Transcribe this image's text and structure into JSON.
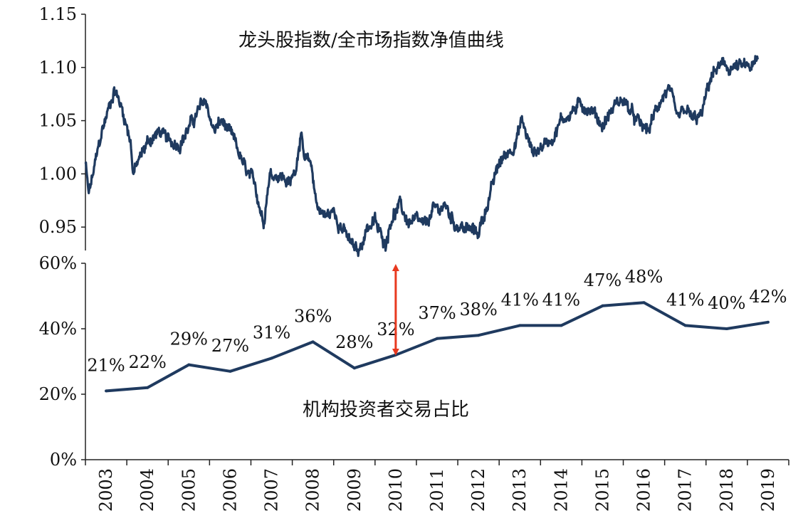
{
  "chart_data": [
    {
      "type": "line",
      "title": "龙头股指数/全市场指数净值曲线",
      "ylim": [
        0.92,
        1.15
      ],
      "yticks": [
        "1.15",
        "1.10",
        "1.05",
        "1.00",
        "0.95"
      ],
      "ytick_values": [
        1.15,
        1.1,
        1.05,
        1.0,
        0.95
      ],
      "grid": false,
      "x_range": [
        2003,
        2020
      ],
      "keypoints": {
        "x": [
          2003.0,
          2003.08,
          2003.4,
          2003.7,
          2003.9,
          2004.1,
          2004.15,
          2004.5,
          2004.8,
          2005.0,
          2005.3,
          2005.6,
          2005.9,
          2006.1,
          2006.3,
          2006.6,
          2006.9,
          2007.1,
          2007.3,
          2007.45,
          2007.7,
          2007.95,
          2008.1,
          2008.2,
          2008.3,
          2008.45,
          2008.6,
          2008.8,
          2009.0,
          2009.2,
          2009.4,
          2009.6,
          2009.8,
          2010.0,
          2010.1,
          2010.25,
          2010.4,
          2010.6,
          2010.8,
          2011.0,
          2011.2,
          2011.4,
          2011.7,
          2011.9,
          2012.2,
          2012.5,
          2012.7,
          2013.0,
          2013.2,
          2013.4,
          2013.55,
          2013.8,
          2014.0,
          2014.3,
          2014.5,
          2014.8,
          2015.0,
          2015.25,
          2015.5,
          2015.8,
          2016.0,
          2016.3,
          2016.6,
          2016.9,
          2017.1,
          2017.3,
          2017.5,
          2017.7,
          2017.9,
          2018.1,
          2018.3,
          2018.5,
          2018.7,
          2018.9,
          2019.1,
          2019.25
        ],
        "y": [
          1.01,
          0.98,
          1.04,
          1.08,
          1.06,
          1.03,
          1.0,
          1.03,
          1.04,
          1.03,
          1.03,
          1.05,
          1.07,
          1.04,
          1.05,
          1.03,
          1.0,
          0.99,
          0.955,
          1.0,
          1.0,
          0.99,
          1.01,
          1.04,
          1.01,
          1.01,
          0.97,
          0.96,
          0.965,
          0.95,
          0.935,
          0.925,
          0.95,
          0.955,
          0.945,
          0.935,
          0.96,
          0.97,
          0.955,
          0.955,
          0.95,
          0.965,
          0.97,
          0.955,
          0.948,
          0.945,
          0.97,
          1.01,
          1.02,
          1.03,
          1.05,
          1.02,
          1.025,
          1.035,
          1.05,
          1.06,
          1.065,
          1.06,
          1.045,
          1.065,
          1.07,
          1.05,
          1.04,
          1.07,
          1.08,
          1.05,
          1.06,
          1.05,
          1.055,
          1.09,
          1.1,
          1.1,
          1.1,
          1.1,
          1.1,
          1.105
        ]
      }
    },
    {
      "type": "line",
      "title": "机构投资者交易占比",
      "categories": [
        "2003",
        "2004",
        "2005",
        "2006",
        "2007",
        "2008",
        "2009",
        "2010",
        "2011",
        "2012",
        "2013",
        "2014",
        "2015",
        "2016",
        "2017",
        "2018",
        "2019"
      ],
      "series": [
        {
          "name": "机构投资者交易占比",
          "values": [
            21,
            22,
            29,
            27,
            31,
            36,
            28,
            32,
            37,
            38,
            41,
            41,
            47,
            48,
            41,
            40,
            42
          ],
          "labels": [
            "21%",
            "22%",
            "29%",
            "27%",
            "31%",
            "36%",
            "28%",
            "32%",
            "37%",
            "38%",
            "41%",
            "41%",
            "47%",
            "48%",
            "41%",
            "40%",
            "42%"
          ]
        }
      ],
      "ylim": [
        0,
        60
      ],
      "yticks": [
        "60%",
        "40%",
        "20%",
        "0%"
      ],
      "ytick_values": [
        60,
        40,
        20,
        0
      ],
      "xlabel": "",
      "ylabel": ""
    }
  ],
  "annotation": {
    "type": "double-arrow",
    "x": 2010,
    "from_line_value": 0.92,
    "to_bar_value": 32,
    "color": "#e8391f"
  },
  "colors": {
    "line": "#1f3a5f",
    "arrow": "#e8391f",
    "axis": "#222222"
  }
}
